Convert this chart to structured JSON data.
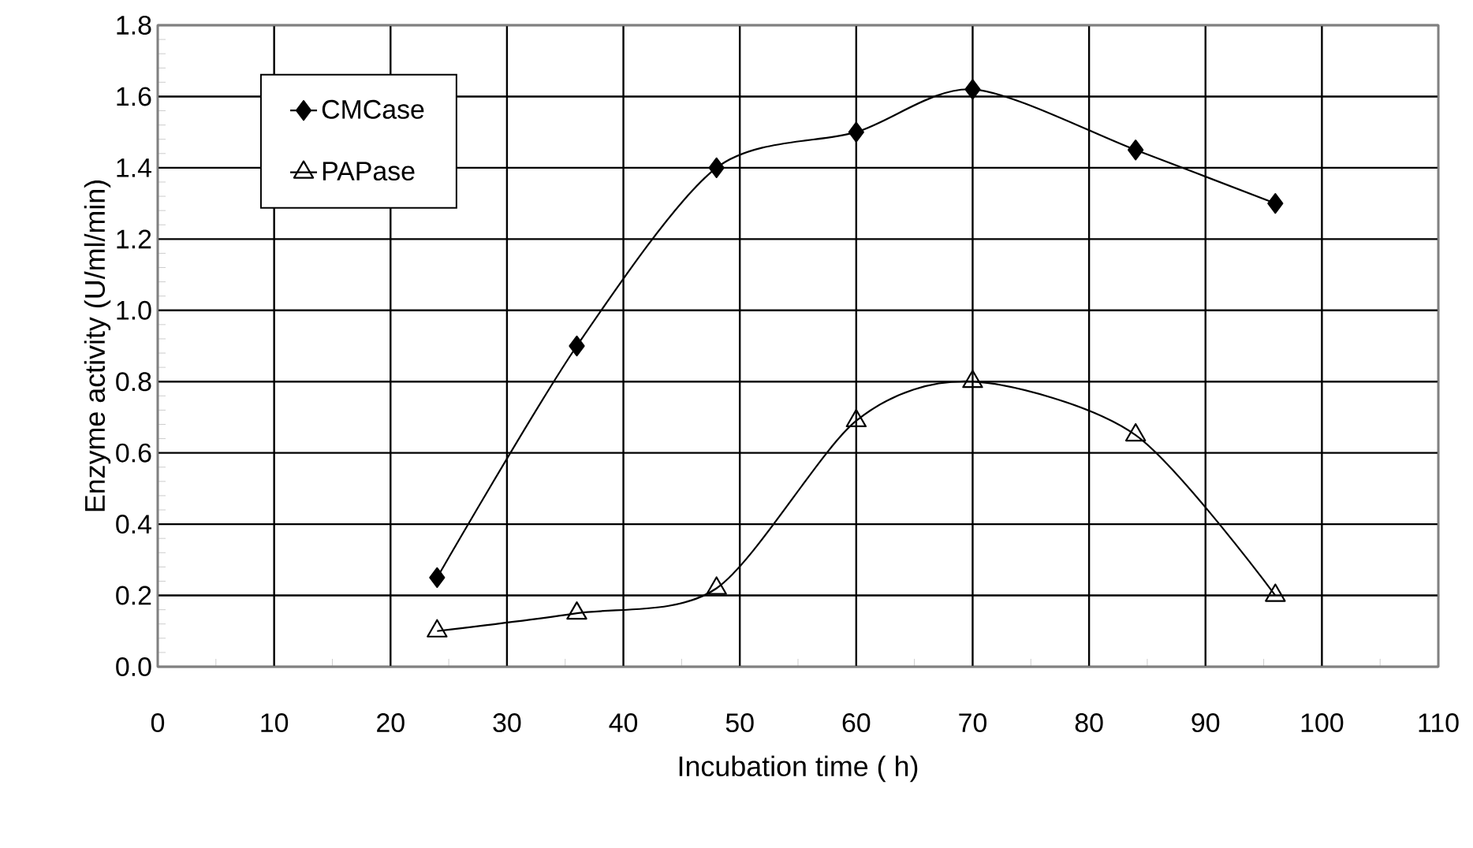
{
  "chart_data": {
    "type": "line",
    "xlabel": "Incubation time ( h)",
    "ylabel": "Enzyme activity (U/ml/min)",
    "x": [
      24,
      36,
      48,
      60,
      70,
      84,
      96
    ],
    "series": [
      {
        "name": "CMCase",
        "color": "#000000",
        "marker": "diamond",
        "values": [
          0.25,
          0.9,
          1.4,
          1.5,
          1.62,
          1.45,
          1.3
        ]
      },
      {
        "name": "PAPase",
        "color": "#000000",
        "marker": "triangle",
        "values": [
          0.1,
          0.15,
          0.22,
          0.69,
          0.8,
          0.65,
          0.2
        ]
      }
    ],
    "xlim": [
      0,
      110
    ],
    "xticks": [
      0,
      10,
      20,
      30,
      40,
      50,
      60,
      70,
      80,
      90,
      100,
      110
    ],
    "ylim": [
      0,
      1.8
    ],
    "yticks": [
      {
        "value": 0,
        "label": "0.0"
      },
      {
        "value": 0.2,
        "label": "0.2"
      },
      {
        "value": 0.4,
        "label": "0.4"
      },
      {
        "value": 0.6,
        "label": "0.6"
      },
      {
        "value": 0.8,
        "label": "0.8"
      },
      {
        "value": 1.0,
        "label": "1.0"
      },
      {
        "value": 1.2,
        "label": "1.2"
      },
      {
        "value": 1.4,
        "label": "1.4"
      },
      {
        "value": 1.6,
        "label": "1.6"
      },
      {
        "value": 1.8,
        "label": "1.8"
      }
    ],
    "grid": true,
    "legend": "top left",
    "line_style": "solid"
  }
}
